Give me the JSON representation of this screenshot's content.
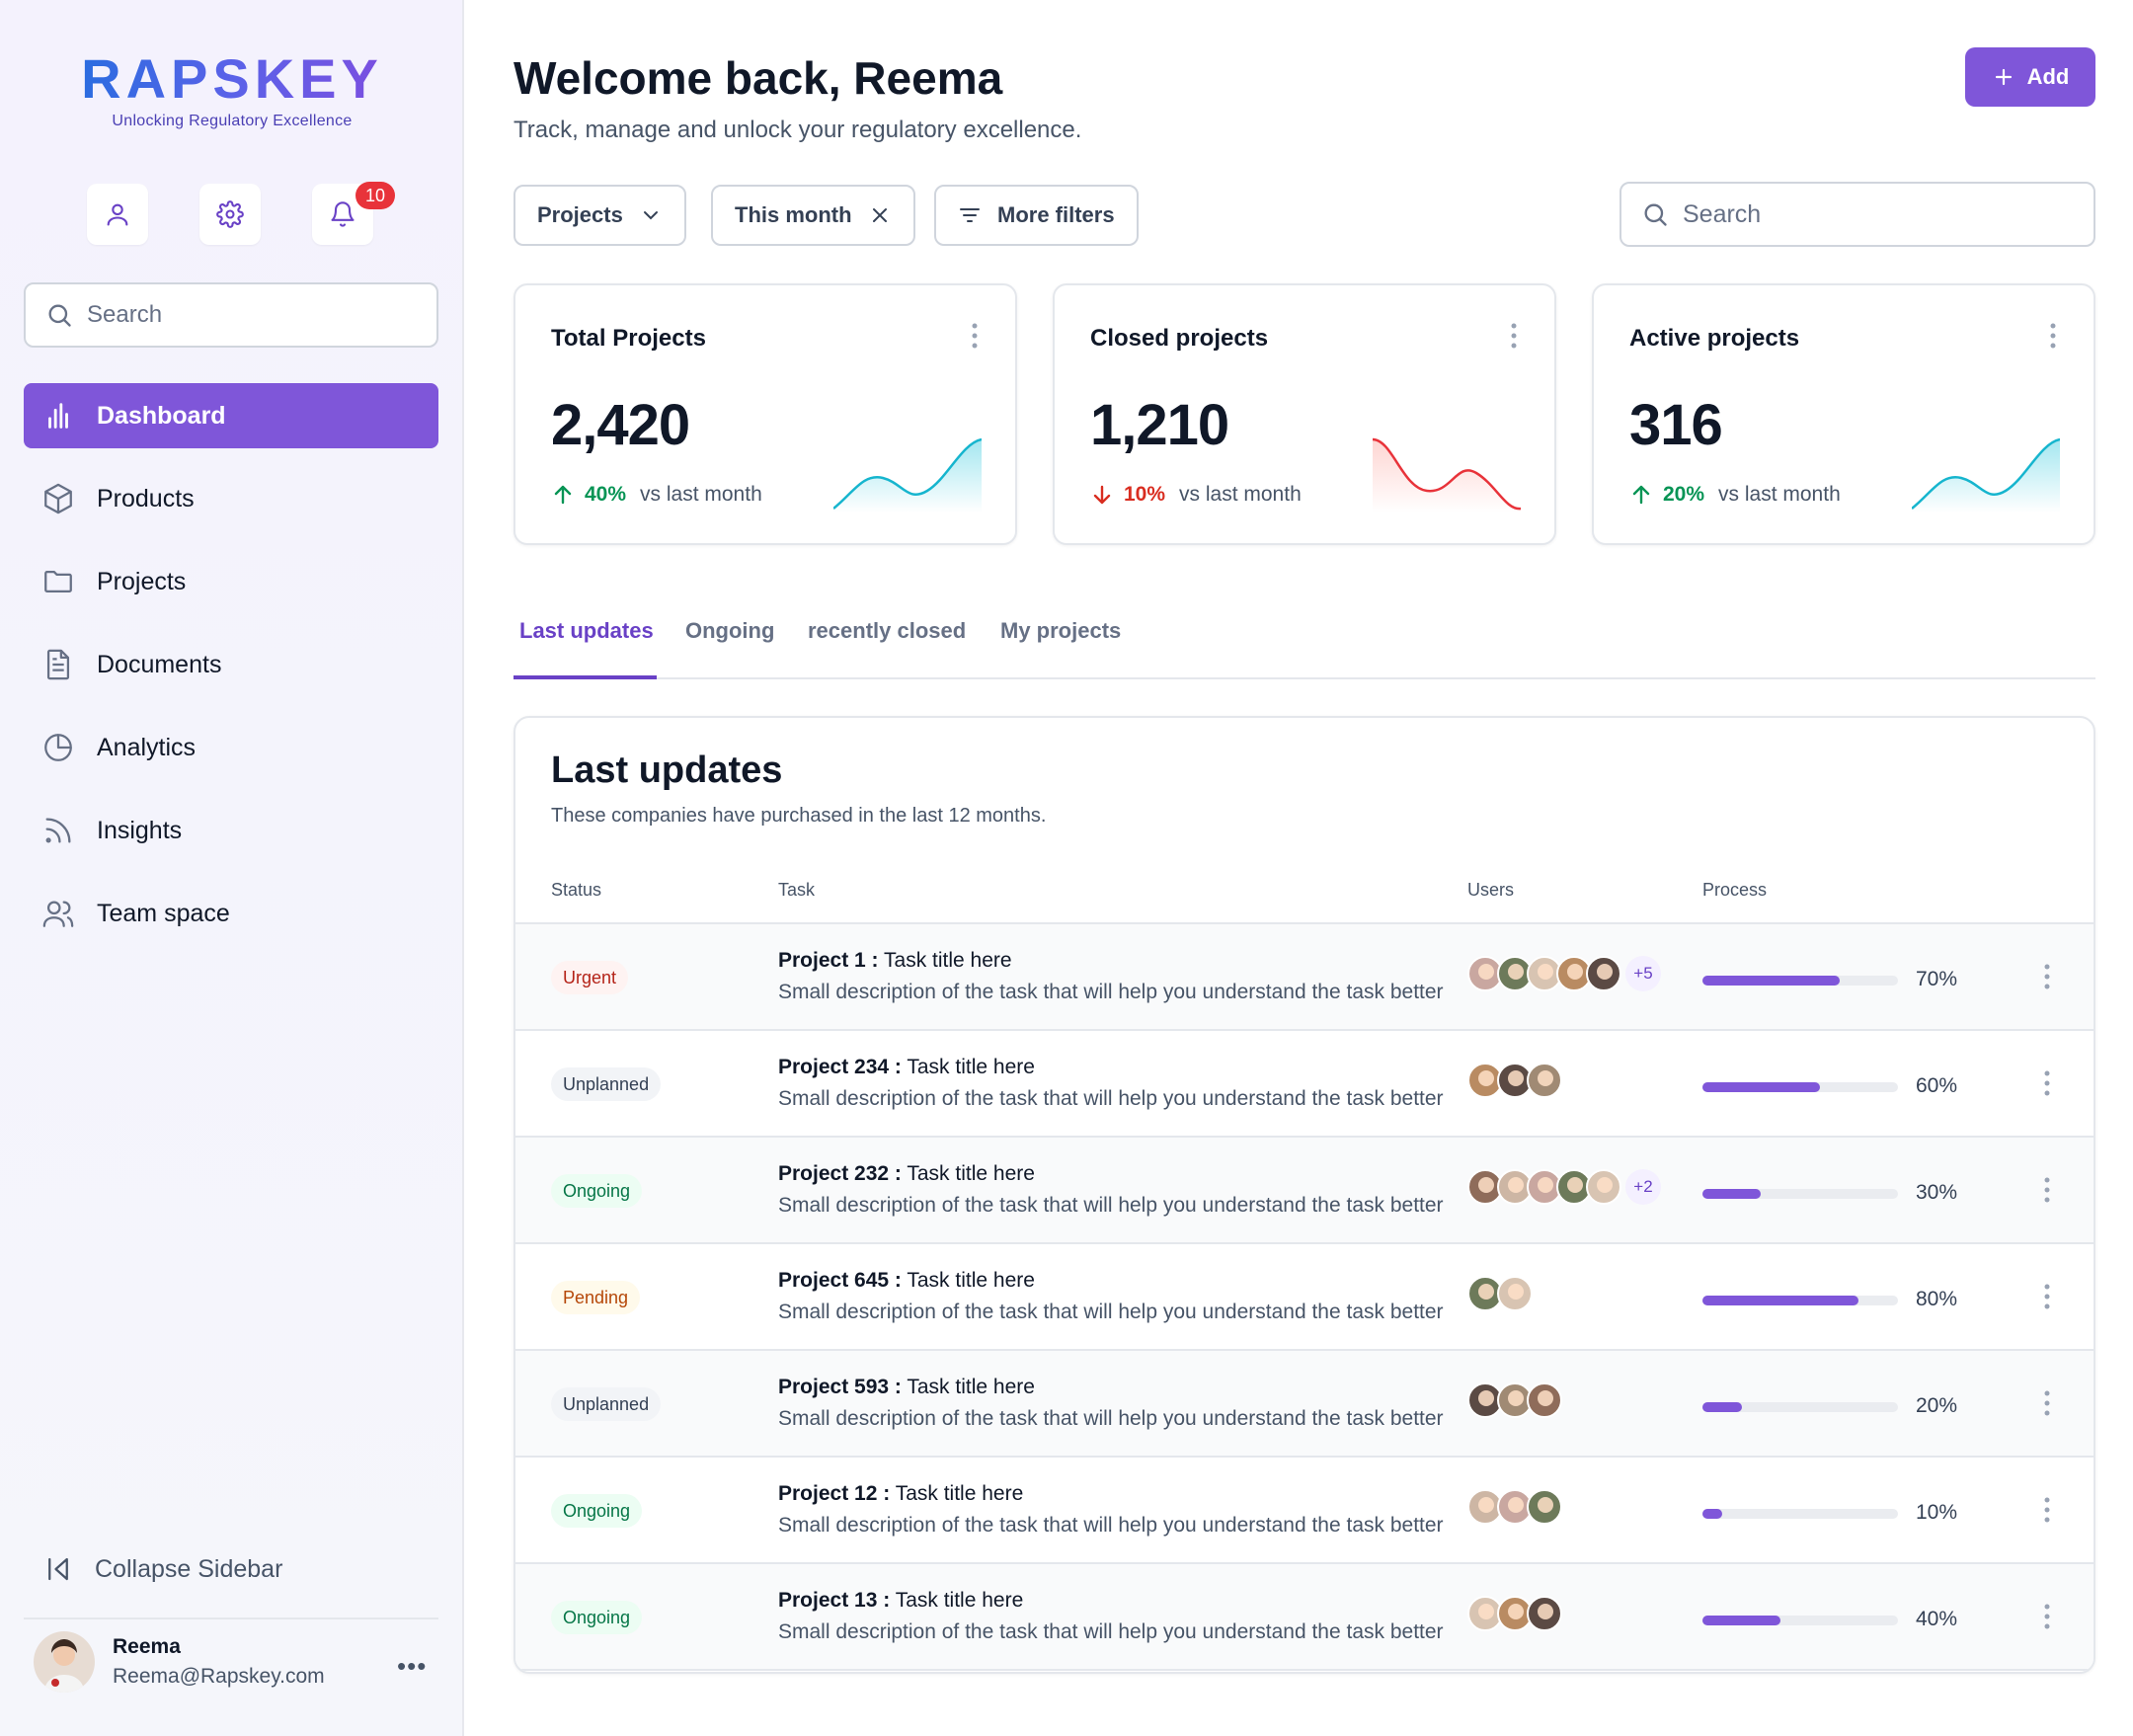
{
  "brand": {
    "name": "RAPSKEY",
    "tagline": "Unlocking Regulatory Excellence"
  },
  "sidebar": {
    "notifications_count": "10",
    "search_placeholder": "Search",
    "items": [
      {
        "label": "Dashboard",
        "icon": "bar-chart-icon",
        "active": true
      },
      {
        "label": "Products",
        "icon": "cube-icon"
      },
      {
        "label": "Projects",
        "icon": "folder-icon"
      },
      {
        "label": "Documents",
        "icon": "document-icon"
      },
      {
        "label": "Analytics",
        "icon": "pie-chart-icon"
      },
      {
        "label": "Insights",
        "icon": "rss-icon"
      },
      {
        "label": "Team space",
        "icon": "users-icon"
      }
    ],
    "collapse_label": "Collapse Sidebar",
    "user": {
      "name": "Reema",
      "email": "Reema@Rapskey.com"
    }
  },
  "header": {
    "title": "Welcome back, Reema",
    "subtitle": "Track, manage and unlock your regulatory excellence.",
    "add_label": "Add"
  },
  "filters": {
    "projects_label": "Projects",
    "period_label": "This month",
    "more_label": "More filters",
    "search_placeholder": "Search"
  },
  "stats": [
    {
      "title": "Total Projects",
      "value": "2,420",
      "change": "40%",
      "direction": "up",
      "compare": "vs last month",
      "color": "#079455"
    },
    {
      "title": "Closed projects",
      "value": "1,210",
      "change": "10%",
      "direction": "down",
      "compare": "vs last month",
      "color": "#d92d20"
    },
    {
      "title": "Active projects",
      "value": "316",
      "change": "20%",
      "direction": "up",
      "compare": "vs last month",
      "color": "#079455"
    }
  ],
  "tabs": [
    "Last updates",
    "Ongoing",
    "recently closed",
    "My projects"
  ],
  "table": {
    "title": "Last updates",
    "subtitle": "These companies have purchased in the last 12 months.",
    "columns": {
      "status": "Status",
      "task": "Task",
      "users": "Users",
      "process": "Process"
    },
    "rows": [
      {
        "status": "Urgent",
        "project": "Project 1 :",
        "task": "Task title here",
        "desc": "Small description of the task that will help you understand the task better",
        "extra": "+5",
        "progress": "70%",
        "progress_value": 0.7
      },
      {
        "status": "Unplanned",
        "project": "Project 234 :",
        "task": "Task title here",
        "desc": "Small description of the task that will help you understand the task better",
        "extra": "",
        "progress": "60%",
        "progress_value": 0.6
      },
      {
        "status": "Ongoing",
        "project": "Project 232 :",
        "task": "Task title here",
        "desc": "Small description of the task that will help you understand the task better",
        "extra": "+2",
        "progress": "30%",
        "progress_value": 0.3
      },
      {
        "status": "Pending",
        "project": "Project 645 :",
        "task": "Task title here",
        "desc": "Small description of the task that will help you understand the task better",
        "extra": "",
        "progress": "80%",
        "progress_value": 0.8
      },
      {
        "status": "Unplanned",
        "project": "Project 593 :",
        "task": "Task title here",
        "desc": "Small description of the task that will help you understand the task better",
        "extra": "",
        "progress": "20%",
        "progress_value": 0.2
      },
      {
        "status": "Ongoing",
        "project": "Project 12 :",
        "task": "Task title here",
        "desc": "Small description of the task that will help you understand the task better",
        "extra": "",
        "progress": "10%",
        "progress_value": 0.1
      },
      {
        "status": "Ongoing",
        "project": "Project 13 :",
        "task": "Task title here",
        "desc": "Small description of the task that will help you understand the task better",
        "extra": "",
        "progress": "40%",
        "progress_value": 0.4
      }
    ]
  },
  "colors": {
    "accent": "#7f56d9",
    "accent_dark": "#6941c6",
    "urgent": "#b42318",
    "unplanned": "#344054",
    "ongoing": "#067647",
    "pending": "#b54708"
  }
}
